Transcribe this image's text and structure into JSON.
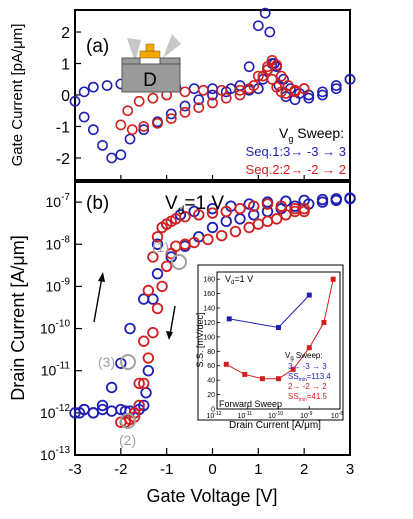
{
  "colors": {
    "seq1": "#1f1fb4",
    "seq2": "#d21e1e",
    "gray": "#a0a0a0",
    "device_body": "#9a9a9a",
    "device_gate": "#f2a800"
  },
  "chart_data": [
    {
      "panel": "a",
      "type": "scatter",
      "xlabel": "",
      "ylabel": "Gate Current [pA/μm]",
      "xlim": [
        -3,
        3
      ],
      "ylim": [
        -2.7,
        2.7
      ],
      "yticks": [
        "-2",
        "-1",
        "0",
        "1",
        "2"
      ],
      "panel_label": "(a)",
      "device_label": "D",
      "legend_title_main": "V",
      "legend_title_sub": "g",
      "legend_title_rest": " Sweep:",
      "series": [
        {
          "name": "Seq.1:3→ -3 → 3",
          "x": [
            3.0,
            2.7,
            2.4,
            2.1,
            1.8,
            1.6,
            1.45,
            1.35,
            1.25,
            1.15,
            1.0,
            0.8,
            0.6,
            0.3,
            0.0,
            -0.3,
            -0.6,
            -0.9,
            -1.2,
            -1.5,
            -1.8,
            -2.0,
            -2.2,
            -2.4,
            -2.6,
            -2.8,
            -3.0,
            -2.8,
            -2.6,
            -2.3,
            -2.0,
            -1.6,
            -1.2,
            -0.8,
            -0.4,
            0.0,
            0.4,
            0.8,
            1.0,
            1.1,
            1.2,
            1.3,
            1.4,
            1.55,
            1.7,
            1.9,
            2.1,
            2.4,
            2.7,
            3.0
          ],
          "y": [
            0.5,
            0.2,
            0.0,
            -0.1,
            -0.15,
            -0.05,
            0.3,
            1.0,
            2.0,
            2.6,
            2.2,
            0.9,
            0.3,
            0.1,
            0.0,
            -0.15,
            -0.35,
            -0.6,
            -0.85,
            -1.1,
            -1.4,
            -1.9,
            -2.0,
            -1.6,
            -1.1,
            -0.7,
            -0.2,
            0.1,
            0.25,
            0.3,
            0.35,
            0.3,
            0.3,
            0.25,
            0.2,
            0.2,
            0.2,
            0.15,
            0.2,
            0.5,
            0.8,
            1.0,
            0.9,
            0.5,
            0.2,
            0.05,
            0.0,
            0.1,
            0.3,
            0.5
          ]
        },
        {
          "name": "Seq.2:2→ -2 → 2",
          "x": [
            2.0,
            1.8,
            1.6,
            1.5,
            1.4,
            1.3,
            1.2,
            1.0,
            0.8,
            0.6,
            0.3,
            0.0,
            -0.3,
            -0.6,
            -0.9,
            -1.2,
            -1.5,
            -1.75,
            -2.0,
            -1.85,
            -1.6,
            -1.3,
            -1.0,
            -0.6,
            -0.2,
            0.2,
            0.6,
            0.9,
            1.1,
            1.2,
            1.3,
            1.4,
            1.5,
            1.65,
            1.8,
            2.0
          ],
          "y": [
            0.2,
            0.1,
            0.05,
            0.1,
            0.25,
            0.5,
            0.8,
            0.6,
            0.2,
            0.0,
            -0.1,
            -0.25,
            -0.4,
            -0.55,
            -0.75,
            -0.9,
            -1.0,
            -1.1,
            -0.95,
            -0.5,
            -0.2,
            -0.1,
            0.0,
            0.1,
            0.15,
            0.15,
            0.15,
            0.3,
            0.6,
            0.9,
            1.1,
            0.95,
            0.6,
            0.3,
            0.15,
            0.2
          ]
        }
      ]
    },
    {
      "panel": "b",
      "type": "scatter",
      "xlabel": "Gate Voltage [V]",
      "ylabel": "Drain Current [A/μm]",
      "xlim": [
        -3,
        3
      ],
      "xticks": [
        "-3",
        "-2",
        "-1",
        "0",
        "1",
        "2",
        "3"
      ],
      "ylim": [
        1e-13,
        3e-07
      ],
      "yscale": "log",
      "panel_label": "(b)",
      "vd_label_main": "V",
      "vd_label_sub": "d",
      "vd_label_rest": "=1 V",
      "annotations": [
        "(1)",
        "(2)",
        "(3)"
      ],
      "series": [
        {
          "name": "Seq.1:3→ -3 → 3",
          "x": [
            3.0,
            2.7,
            2.4,
            2.1,
            1.8,
            1.5,
            1.2,
            0.9,
            0.6,
            0.3,
            0.0,
            -0.3,
            -0.6,
            -0.9,
            -1.2,
            -1.5,
            -1.8,
            -2.0,
            -2.2,
            -2.4,
            -2.6,
            -2.8,
            -3.0,
            -2.9,
            -2.8,
            -2.6,
            -2.4,
            -2.2,
            -2.0,
            -1.9,
            -1.8,
            -1.7,
            -1.6,
            -1.5,
            -1.45,
            -1.4,
            -1.3,
            -1.2,
            -1.0,
            -0.7,
            -0.4,
            0.0,
            0.4,
            0.8,
            1.2,
            1.6,
            2.0,
            2.4,
            2.7,
            3.0
          ],
          "y": [
            1.2e-07,
            1.1e-07,
            1e-07,
            9e-08,
            8e-08,
            7e-08,
            6e-08,
            5e-08,
            4e-08,
            3.5e-08,
            2.5e-08,
            1.5e-08,
            9e-09,
            5e-09,
            2e-09,
            5e-10,
            1e-10,
            1.5e-11,
            4e-12,
            1.5e-12,
            1e-12,
            1.2e-12,
            1e-12,
            1e-12,
            1.2e-12,
            1e-12,
            1.2e-12,
            1.1e-12,
            1.2e-12,
            1.1e-12,
            1.1e-12,
            1e-12,
            1.2e-12,
            1.5e-12,
            3e-12,
            1e-11,
            5e-10,
            1e-08,
            3e-08,
            5e-08,
            6e-08,
            7e-08,
            8e-08,
            9e-08,
            1e-07,
            1.05e-07,
            1.1e-07,
            1.15e-07,
            1.2e-07,
            1.25e-07
          ]
        },
        {
          "name": "Seq.2:2→ -2 → 2",
          "x": [
            2.0,
            1.8,
            1.6,
            1.4,
            1.2,
            1.0,
            0.8,
            0.5,
            0.2,
            -0.1,
            -0.4,
            -0.6,
            -0.8,
            -0.9,
            -1.0,
            -1.1,
            -1.2,
            -1.3,
            -1.4,
            -1.5,
            -1.6,
            -1.7,
            -1.8,
            -1.9,
            -2.0,
            -1.9,
            -1.8,
            -1.7,
            -1.6,
            -1.5,
            -1.4,
            -1.3,
            -1.2,
            -1.1,
            -1.0,
            -0.9,
            -0.8,
            -0.6,
            -0.3,
            0.0,
            0.3,
            0.6,
            0.9,
            1.2,
            1.5,
            1.8,
            2.0
          ],
          "y": [
            7e-08,
            6e-08,
            5e-08,
            4e-08,
            3.5e-08,
            3e-08,
            2.5e-08,
            2e-08,
            1.6e-08,
            1.3e-08,
            1.1e-08,
            1e-08,
            9e-09,
            6e-09,
            3e-09,
            1e-09,
            3e-10,
            8e-11,
            2e-11,
            5e-12,
            1.5e-12,
            8e-13,
            7e-13,
            6e-13,
            6e-13,
            6e-13,
            7e-13,
            1e-12,
            5e-12,
            5e-11,
            8e-10,
            5e-09,
            1.5e-08,
            2.5e-08,
            3e-08,
            3.5e-08,
            4e-08,
            4.5e-08,
            5e-08,
            5.5e-08,
            6e-08,
            7e-08,
            8e-08,
            9e-08,
            8e-08,
            7e-08,
            6e-08
          ]
        }
      ]
    },
    {
      "panel": "inset",
      "type": "line",
      "xlabel": "Drain Current [A/μm]",
      "ylabel": "S.S. [mV/dec]",
      "xscale": "log",
      "xlim": [
        1e-12,
        1e-08
      ],
      "xticks_exp": [
        "-12",
        "-11",
        "-10",
        "-9",
        "-8"
      ],
      "ylim": [
        0,
        190
      ],
      "yticks": [
        "0",
        "20",
        "40",
        "60",
        "80",
        "100",
        "120",
        "140",
        "160",
        "180"
      ],
      "vd_label_main": "V",
      "vd_label_sub": "d",
      "vd_label_rest": "=1 V",
      "legend_title_main": "V",
      "legend_title_sub": "g",
      "legend_title_rest": " Sweep:",
      "note": "Forward Sweep",
      "series": [
        {
          "name": "3→ -3 → 3",
          "ss_text": "SS",
          "ss_sub": "min",
          "ss_value": "=113.4",
          "x": [
            2.5e-12,
            1e-10,
            1e-09
          ],
          "y": [
            125,
            113,
            158
          ]
        },
        {
          "name": "2→ -2 → 2",
          "ss_text": "SS",
          "ss_sub": "min",
          "ss_value": "=41.5",
          "x": [
            2e-12,
            8e-12,
            3e-11,
            1e-10,
            3e-10,
            1e-09,
            3e-09,
            6e-09
          ],
          "y": [
            62,
            48,
            42,
            42,
            55,
            85,
            120,
            180
          ]
        }
      ]
    }
  ]
}
